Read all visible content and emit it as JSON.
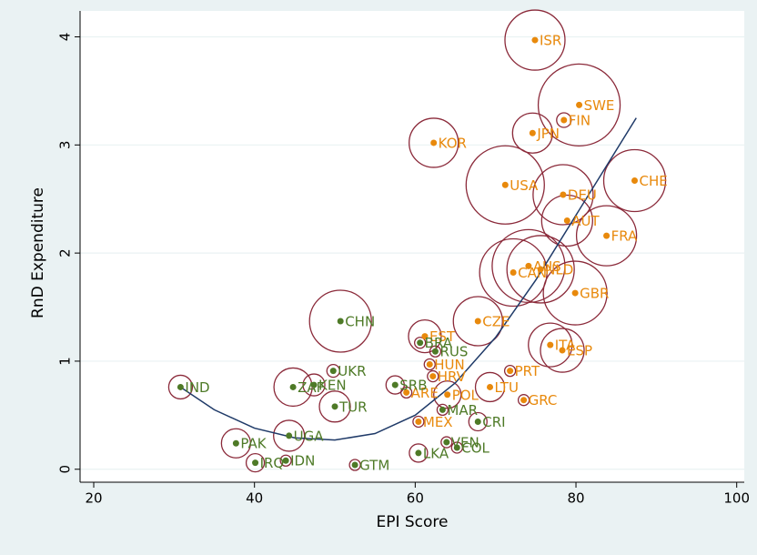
{
  "chart_data": {
    "type": "scatter",
    "x_label": "EPI Score",
    "y_label": "RnD Expenditure",
    "xlim": [
      18.3,
      100.6
    ],
    "ylim": [
      -0.12,
      4.24
    ],
    "xticks": [
      20,
      40,
      60,
      80,
      100
    ],
    "yticks": [
      0,
      1,
      2,
      3,
      4
    ],
    "grid": true,
    "bubble_color": "#8b2a3a",
    "series": [
      {
        "color": "#e8890c",
        "labels": [
          "ISR",
          "SWE",
          "FIN",
          "JPN",
          "KOR",
          "USA",
          "CHE",
          "DEU",
          "AUT",
          "FRA",
          "AUS",
          "CAN",
          "NLD",
          "GBR",
          "CZE",
          "EST",
          "ITA",
          "ESP",
          "HUN",
          "PRT",
          "HRV",
          "LTU",
          "ARE",
          "POL",
          "GRC",
          "MEX"
        ],
        "x": [
          74.9,
          80.4,
          78.5,
          74.6,
          62.3,
          71.2,
          87.3,
          78.4,
          78.9,
          83.8,
          74.1,
          72.2,
          75.6,
          79.9,
          67.8,
          61.2,
          76.8,
          78.3,
          61.8,
          71.8,
          62.2,
          69.3,
          58.9,
          64.0,
          73.5,
          60.4
        ],
        "values": [
          3.97,
          3.37,
          3.23,
          3.11,
          3.02,
          2.63,
          2.67,
          2.54,
          2.3,
          2.16,
          1.88,
          1.82,
          1.85,
          1.63,
          1.37,
          1.23,
          1.15,
          1.1,
          0.97,
          0.91,
          0.86,
          0.76,
          0.71,
          0.69,
          0.64,
          0.44
        ],
        "sizes": [
          33,
          45,
          8,
          22,
          27,
          43,
          34,
          33,
          28,
          33,
          40,
          37,
          37,
          35,
          27,
          18,
          24,
          24,
          6,
          6,
          6,
          16,
          6,
          15,
          6,
          6
        ]
      },
      {
        "color": "#4e7a27",
        "labels": [
          "CHN",
          "BRA",
          "RUS",
          "UKR",
          "IND",
          "ZAF",
          "KEN",
          "SRB",
          "TUR",
          "MAR",
          "CRI",
          "PAK",
          "VEN",
          "COL",
          "LKA",
          "IDN",
          "IRQ",
          "GTM",
          "UGA"
        ],
        "x": [
          50.7,
          60.6,
          62.5,
          49.8,
          30.8,
          44.8,
          47.4,
          57.5,
          50.0,
          63.4,
          67.8,
          37.7,
          63.9,
          65.2,
          60.4,
          43.9,
          40.1,
          52.5,
          44.3
        ],
        "values": [
          1.37,
          1.17,
          1.09,
          0.91,
          0.76,
          0.76,
          0.78,
          0.78,
          0.58,
          0.55,
          0.44,
          0.24,
          0.25,
          0.2,
          0.15,
          0.08,
          0.06,
          0.04,
          0.31
        ],
        "sizes": [
          34,
          6,
          6,
          7,
          13,
          21,
          12,
          10,
          17,
          6,
          10,
          16,
          6,
          6,
          10,
          6,
          10,
          6,
          17
        ]
      }
    ],
    "fit": {
      "color": "#1f3a68",
      "x": [
        30.8,
        35,
        40,
        45,
        50,
        55,
        60,
        65,
        70,
        75,
        80,
        85,
        87.5
      ],
      "values": [
        0.76,
        0.55,
        0.38,
        0.29,
        0.27,
        0.33,
        0.5,
        0.8,
        1.22,
        1.75,
        2.35,
        2.95,
        3.25
      ]
    }
  }
}
